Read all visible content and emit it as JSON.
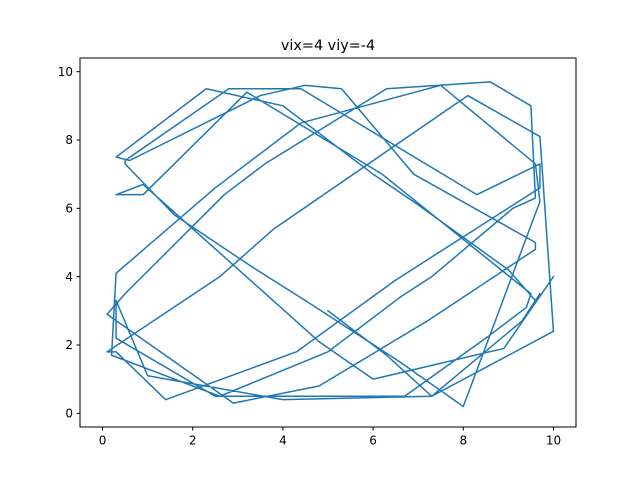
{
  "chart_data": {
    "type": "line",
    "title": "vix=4 viy=-4",
    "xlabel": "",
    "ylabel": "",
    "xlim": [
      -0.5,
      10.5
    ],
    "ylim": [
      -0.4,
      10.4
    ],
    "xticks": [
      0,
      2,
      4,
      6,
      8,
      10
    ],
    "yticks": [
      0,
      2,
      4,
      6,
      8,
      10
    ],
    "grid": false,
    "legend": "none",
    "series": [
      {
        "color": "#1f77b4",
        "x": [
          5.0,
          6.3,
          7.3,
          9.3,
          9.7,
          9.6,
          9.0,
          7.0,
          6.0,
          5.0,
          4.0,
          2.3,
          0.3,
          0.6,
          3.5,
          4.5,
          5.3,
          6.9,
          9.6,
          9.6,
          7.2,
          4.8,
          2.9,
          0.1,
          0.5,
          2.7,
          3.6,
          6.3,
          8.6,
          9.5,
          9.6,
          9.1,
          7.3,
          6.6,
          5.0,
          2.6,
          0.2,
          0.3,
          2.5,
          4.4,
          7.5,
          9.6,
          9.7,
          8.0,
          6.6,
          4.5,
          3.3,
          1.6,
          0.5,
          0.5,
          2.8,
          4.4,
          8.3,
          9.7,
          9.7,
          6.5,
          4.3,
          1.4,
          0.3,
          0.1,
          2.6,
          3.8,
          8.1,
          9.7,
          10.0,
          7.3,
          4.0,
          1.0,
          0.3,
          0.3,
          2.5,
          6.7,
          8.5,
          9.4,
          9.5,
          6.2,
          3.2,
          0.9,
          0.3,
          0.9,
          4.8,
          6.0,
          8.9,
          10.0
        ],
        "y": [
          3.0,
          1.7,
          0.5,
          2.7,
          3.5,
          3.3,
          4.2,
          6.1,
          7.0,
          8.0,
          9.0,
          9.5,
          7.5,
          7.4,
          9.3,
          9.6,
          9.5,
          7.0,
          5.0,
          4.8,
          2.7,
          0.8,
          0.3,
          2.9,
          3.5,
          6.4,
          7.3,
          9.5,
          9.7,
          9.0,
          6.3,
          6.0,
          4.0,
          3.4,
          1.8,
          0.5,
          1.7,
          4.1,
          6.6,
          8.5,
          9.6,
          7.3,
          6.2,
          0.2,
          1.5,
          3.3,
          4.3,
          5.8,
          7.3,
          7.4,
          9.5,
          9.5,
          6.4,
          7.3,
          6.6,
          3.9,
          1.8,
          0.4,
          1.8,
          1.8,
          4.0,
          5.4,
          9.3,
          8.1,
          2.4,
          0.5,
          0.4,
          1.1,
          3.3,
          2.2,
          0.5,
          0.5,
          2.2,
          3.1,
          3.5,
          7.0,
          9.4,
          6.4,
          6.4,
          6.7,
          2.1,
          1.0,
          1.9,
          4.0
        ]
      }
    ]
  }
}
